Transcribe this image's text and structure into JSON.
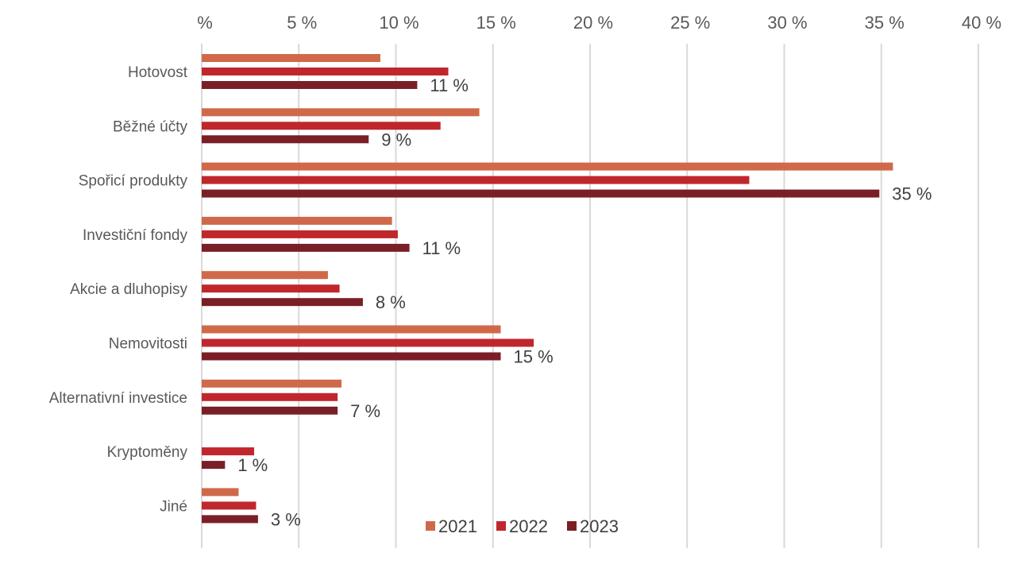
{
  "chart_data": {
    "type": "bar",
    "orientation": "horizontal",
    "categories": [
      "Hotovost",
      "Běžné účty",
      "Spořicí produkty",
      "Investiční fondy",
      "Akcie a dluhopisy",
      "Nemovitosti",
      "Alternativní investice",
      "Kryptoměny",
      "Jiné"
    ],
    "series": [
      {
        "name": "2021",
        "color": "#d0694a",
        "values": [
          9.2,
          14.3,
          35.6,
          9.8,
          6.5,
          15.4,
          7.2,
          null,
          1.9
        ]
      },
      {
        "name": "2022",
        "color": "#c0272d",
        "values": [
          12.7,
          12.3,
          28.2,
          10.1,
          7.1,
          17.1,
          7.0,
          2.7,
          2.8
        ]
      },
      {
        "name": "2023",
        "color": "#7a1f26",
        "values": [
          11.1,
          8.6,
          34.9,
          10.7,
          8.3,
          15.4,
          7.0,
          1.2,
          2.9
        ]
      }
    ],
    "data_labels": {
      "series": "2023",
      "texts": [
        "11 %",
        "9 %",
        "35 %",
        "11 %",
        "8 %",
        "15 %",
        "7 %",
        "1 %",
        "3 %"
      ]
    },
    "xlim": [
      0,
      40
    ],
    "x_ticks": [
      0,
      5,
      10,
      15,
      20,
      25,
      30,
      35,
      40
    ],
    "x_tick_labels": [
      "%",
      "5 %",
      "10 %",
      "15 %",
      "20 %",
      "25 %",
      "30 %",
      "35 %",
      "40 %"
    ],
    "x_axis_position": "top",
    "grid": true,
    "legend_position": "bottom",
    "title": "",
    "xlabel": "",
    "ylabel": ""
  }
}
